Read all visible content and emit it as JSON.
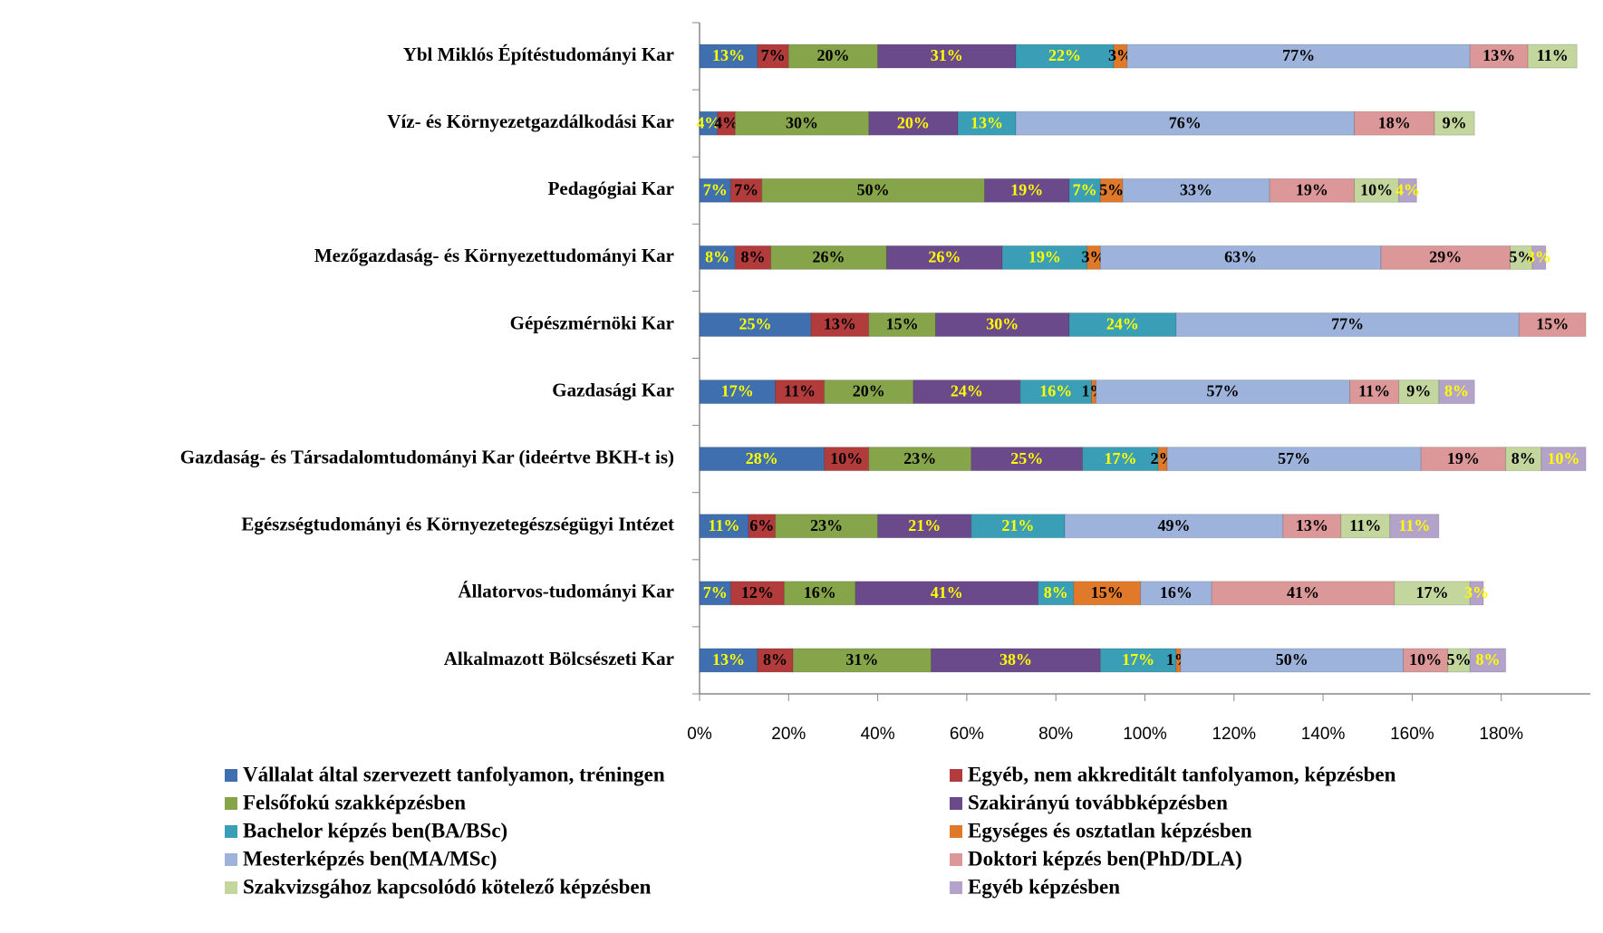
{
  "chart_data": {
    "type": "stacked_barh",
    "categories": [
      "Ybl Miklós Építéstudományi Kar",
      "Víz- és Környezetgazdálkodási Kar",
      "Pedagógiai Kar",
      "Mezőgazdaság- és Környezettudományi Kar",
      "Gépészmérnöki Kar",
      "Gazdasági Kar",
      "Gazdaság- és Társadalomtudományi Kar (ideértve BKH-t is)",
      "Egészségtudományi és Környezetegészségügyi Intézet",
      "Állatorvos-tudományi Kar",
      "Alkalmazott Bölcsészeti Kar"
    ],
    "series": [
      {
        "name": "Vállalat által szervezett tanfolyamon, tréningen",
        "color": "#3f6faf",
        "label_color": "#ffff00",
        "values": [
          13,
          4,
          7,
          8,
          25,
          17,
          28,
          11,
          7,
          13
        ]
      },
      {
        "name": "Egyéb, nem akkreditált tanfolyamon, képzésben",
        "color": "#b23b3b",
        "label_color": "#000000",
        "values": [
          7,
          4,
          7,
          8,
          13,
          11,
          10,
          6,
          12,
          8
        ]
      },
      {
        "name": "Felsőfokú szakképzésben",
        "color": "#86a44a",
        "label_color": "#000000",
        "values": [
          20,
          30,
          50,
          26,
          15,
          20,
          23,
          23,
          16,
          31
        ]
      },
      {
        "name": "Szakirányú továbbképzésben",
        "color": "#6b4a8c",
        "label_color": "#ffff00",
        "values": [
          31,
          20,
          19,
          26,
          30,
          24,
          25,
          21,
          41,
          38
        ]
      },
      {
        "name": "Bachelor képzés ben(BA/BSc)",
        "color": "#3a9fb6",
        "label_color": "#ffff00",
        "values": [
          22,
          13,
          7,
          19,
          24,
          16,
          17,
          21,
          8,
          17
        ]
      },
      {
        "name": "Egységes és osztatlan képzésben",
        "color": "#e07a2a",
        "label_color": "#000000",
        "values": [
          3,
          null,
          5,
          3,
          null,
          1,
          2,
          null,
          15,
          1
        ]
      },
      {
        "name": "Mesterképzés ben(MA/MSc)",
        "color": "#9db3dc",
        "label_color": "#000000",
        "values": [
          77,
          76,
          33,
          63,
          77,
          57,
          57,
          49,
          16,
          50
        ]
      },
      {
        "name": "Doktori képzés ben(PhD/DLA)",
        "color": "#dc9898",
        "label_color": "#000000",
        "values": [
          13,
          18,
          19,
          29,
          15,
          11,
          19,
          13,
          41,
          10
        ]
      },
      {
        "name": "Szakvizsgához kapcsolódó kötelező képzésben",
        "color": "#c2d69e",
        "label_color": "#000000",
        "values": [
          11,
          9,
          10,
          5,
          null,
          9,
          8,
          11,
          17,
          5
        ]
      },
      {
        "name": "Egyéb képzésben",
        "color": "#b3a3cb",
        "label_color": "#ffff00",
        "values": [
          null,
          null,
          4,
          3,
          null,
          8,
          10,
          11,
          3,
          8
        ]
      }
    ],
    "value_labels": "{v}%",
    "xlim": [
      0,
      200
    ],
    "xticks": [
      {
        "value": 0,
        "label": "0%"
      },
      {
        "value": 20,
        "label": "20%"
      },
      {
        "value": 40,
        "label": "40%"
      },
      {
        "value": 60,
        "label": "60%"
      },
      {
        "value": 80,
        "label": "80%"
      },
      {
        "value": 100,
        "label": "100%"
      },
      {
        "value": 120,
        "label": "120%"
      },
      {
        "value": 140,
        "label": "140%"
      },
      {
        "value": 160,
        "label": "160%"
      },
      {
        "value": 180,
        "label": "180%"
      }
    ],
    "legend": "bottom"
  }
}
